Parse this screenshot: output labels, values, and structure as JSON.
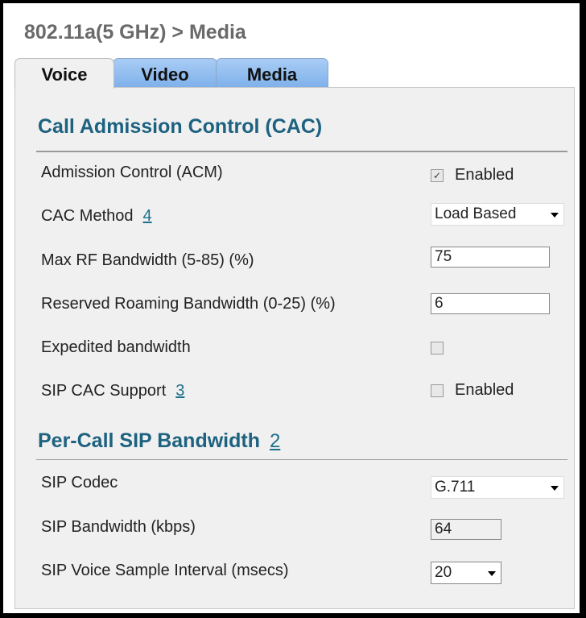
{
  "title": "802.11a(5 GHz) > Media",
  "tabs": [
    {
      "label": "Voice",
      "active": true
    },
    {
      "label": "Video"
    },
    {
      "label": "Media"
    }
  ],
  "cac": {
    "heading": "Call Admission Control (CAC)",
    "admission_control": {
      "label": "Admission Control (ACM)",
      "checked": true,
      "option": "Enabled"
    },
    "cac_method": {
      "label": "CAC Method",
      "footnote": "4",
      "value": "Load Based"
    },
    "max_rf": {
      "label": "Max RF Bandwidth (5-85) (%)",
      "value": "75"
    },
    "roaming": {
      "label": "Reserved Roaming Bandwidth (0-25) (%)",
      "value": "6"
    },
    "expedited": {
      "label": "Expedited bandwidth",
      "checked": false
    },
    "sip_cac": {
      "label": "SIP CAC Support",
      "footnote": "3",
      "checked": false,
      "option": "Enabled"
    }
  },
  "sip": {
    "heading": "Per-Call SIP Bandwidth",
    "footnote": "2",
    "codec": {
      "label": "SIP Codec",
      "value": "G.711"
    },
    "bandwidth": {
      "label": "SIP Bandwidth (kbps)",
      "value": "64"
    },
    "interval": {
      "label": "SIP Voice Sample Interval (msecs)",
      "value": "20"
    }
  }
}
